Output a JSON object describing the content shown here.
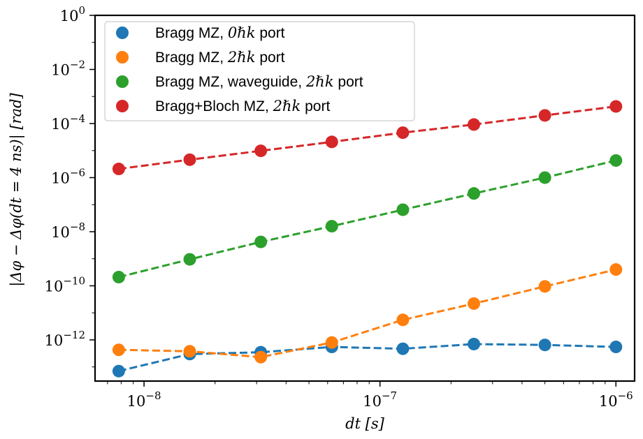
{
  "chart_data": {
    "type": "line",
    "xscale": "log",
    "yscale": "log",
    "xlabel": "dt [s]",
    "ylabel": "|Δφ − Δφ(dt = 4 ns)| [rad]",
    "xlim": [
      6.2e-09,
      1.2e-06
    ],
    "ylim": [
      3e-14,
      1
    ],
    "x_ticks": [
      {
        "value": 1e-08,
        "label": "10",
        "exp": "−8"
      },
      {
        "value": 1e-07,
        "label": "10",
        "exp": "−7"
      },
      {
        "value": 1e-06,
        "label": "10",
        "exp": "−6"
      }
    ],
    "y_ticks": [
      {
        "value": 1,
        "label": "10",
        "exp": "0"
      },
      {
        "value": 0.01,
        "label": "10",
        "exp": "−2"
      },
      {
        "value": 0.0001,
        "label": "10",
        "exp": "−4"
      },
      {
        "value": 1e-06,
        "label": "10",
        "exp": "−6"
      },
      {
        "value": 1e-08,
        "label": "10",
        "exp": "−8"
      },
      {
        "value": 1e-10,
        "label": "10",
        "exp": "−10"
      },
      {
        "value": 1e-12,
        "label": "10",
        "exp": "−12"
      }
    ],
    "x": [
      7.8125e-09,
      1.5625e-08,
      3.125e-08,
      6.25e-08,
      1.25e-07,
      2.5e-07,
      5e-07,
      1e-06
    ],
    "legend_position": "upper-left",
    "series": [
      {
        "name": "Bragg MZ, 0ℏk port",
        "name_text": "Bragg MZ, ",
        "name_math": "0ℏk",
        "name_tail": " port",
        "color": "#1f77b4",
        "values": [
          7e-14,
          3e-13,
          3.5e-13,
          5.5e-13,
          4.7e-13,
          7e-13,
          6.5e-13,
          5.5e-13
        ]
      },
      {
        "name": "Bragg MZ, 2ℏk port",
        "name_text": "Bragg MZ, ",
        "name_math": "2ℏk",
        "name_tail": " port",
        "color": "#ff7f0e",
        "values": [
          4.3e-13,
          3.8e-13,
          2.3e-13,
          8e-13,
          5.5e-12,
          2.2e-11,
          9.5e-11,
          4e-10
        ]
      },
      {
        "name": "Bragg MZ, waveguide, 2ℏk port",
        "name_text": "Bragg MZ, waveguide, ",
        "name_math": "2ℏk",
        "name_tail": " port",
        "color": "#2ca02c",
        "values": [
          2.1e-10,
          9.5e-10,
          4.2e-09,
          1.6e-08,
          6.5e-08,
          2.6e-07,
          1e-06,
          4.3e-06
        ]
      },
      {
        "name": "Bragg+Bloch MZ, 2ℏk port",
        "name_text": "Bragg+Bloch MZ, ",
        "name_math": "2ℏk",
        "name_tail": " port",
        "color": "#d62728",
        "values": [
          2.1e-06,
          4.6e-06,
          9.8e-06,
          2.1e-05,
          4.6e-05,
          9.2e-05,
          0.0002,
          0.00043
        ]
      }
    ]
  }
}
